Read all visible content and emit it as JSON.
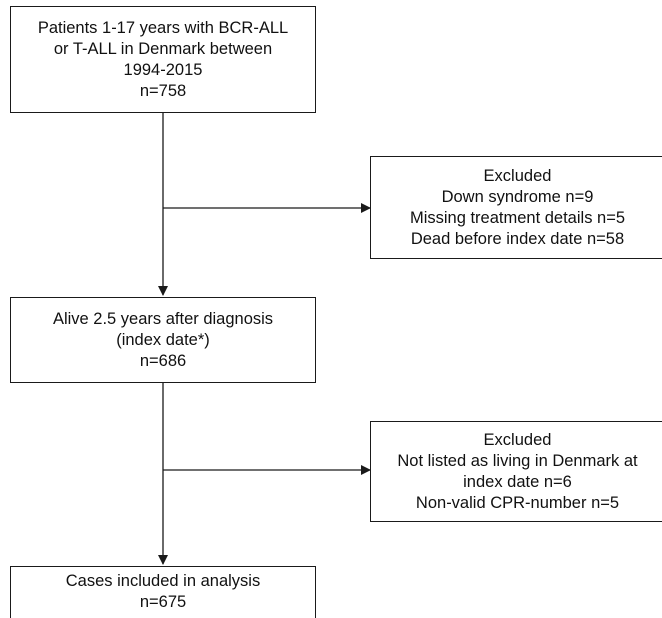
{
  "flowchart": {
    "box_start": {
      "lines": [
        "Patients 1-17 years with BCR-ALL",
        "or T-ALL in Denmark between",
        "1994-2015",
        "n=758"
      ]
    },
    "box_excluded_1": {
      "lines": [
        "Excluded",
        "Down syndrome n=9",
        "Missing treatment details n=5",
        "Dead before index date n=58"
      ]
    },
    "box_alive": {
      "lines": [
        "Alive 2.5 years after diagnosis",
        "(index date*)",
        "n=686"
      ]
    },
    "box_excluded_2": {
      "lines": [
        "Excluded",
        "Not listed as living in Denmark at",
        "index date n=6",
        "Non-valid CPR-number n=5"
      ]
    },
    "box_final": {
      "lines": [
        "Cases included in analysis",
        "n=675"
      ]
    }
  },
  "colors": {
    "stroke": "#1a1a1a",
    "background": "#ffffff"
  }
}
